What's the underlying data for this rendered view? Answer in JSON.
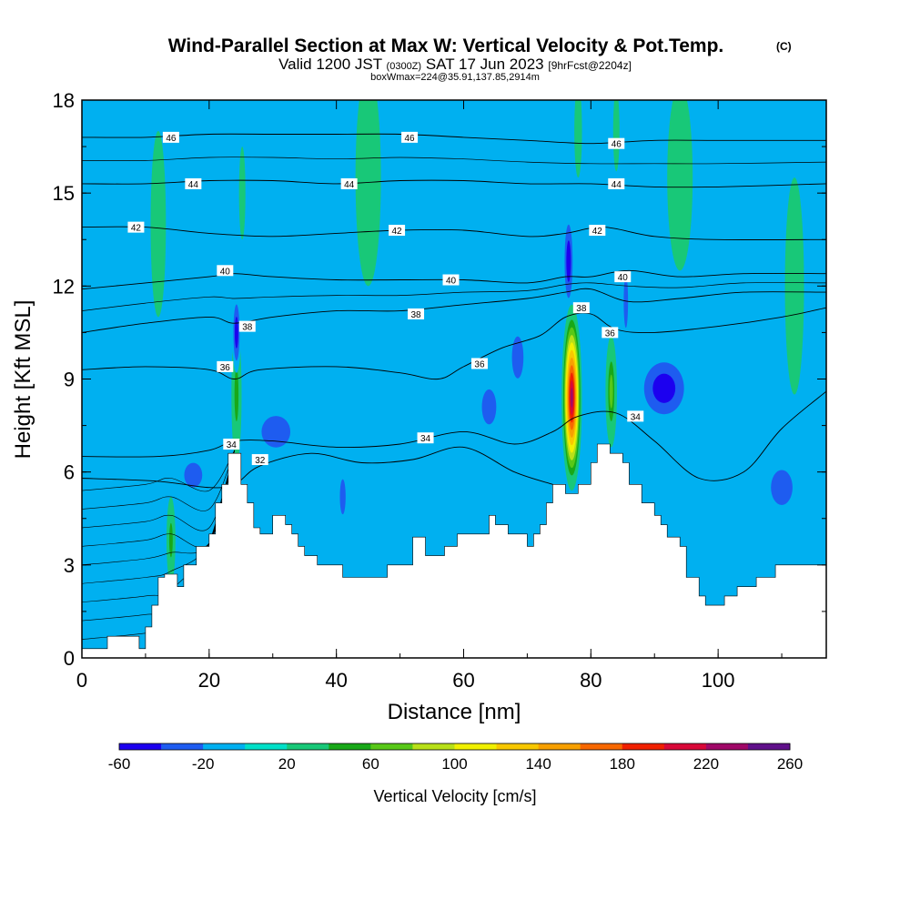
{
  "title": {
    "main": "Wind-Parallel Section at Max W: Vertical Velocity & Pot.Temp.",
    "main_units": "(C)",
    "line2_a": "Valid 1200 JST",
    "line2_b": "(0300Z)",
    "line2_c": "SAT 17 Jun 2023",
    "line2_d": "[9hrFcst@2204z]",
    "line3": "boxWmax=224@35.91,137.85,2914m"
  },
  "chart_data": {
    "type": "heatmap",
    "xlabel": "Distance [nm]",
    "ylabel": "Height [Kft MSL]",
    "xlim": [
      0,
      117
    ],
    "ylim": [
      0,
      18
    ],
    "x_ticks": [
      0,
      20,
      40,
      60,
      80,
      100
    ],
    "y_ticks": [
      0,
      3,
      6,
      9,
      12,
      15,
      18
    ],
    "colorbar": {
      "label": "Vertical Velocity [cm/s]",
      "tick_labels": [
        -60,
        -20,
        20,
        60,
        100,
        140,
        180,
        220,
        260
      ],
      "levels": [
        -60,
        -40,
        -20,
        0,
        20,
        40,
        60,
        80,
        100,
        120,
        140,
        160,
        180,
        200,
        220,
        240,
        260
      ],
      "colors": [
        "#1c00ef",
        "#1e5cf0",
        "#00b0f0",
        "#00e0c8",
        "#18c878",
        "#18a818",
        "#58c818",
        "#b8e018",
        "#f0f000",
        "#f8c800",
        "#f8a000",
        "#f86800",
        "#f02000",
        "#d80838",
        "#a00868",
        "#60108a"
      ]
    },
    "terrain_profile": [
      [
        0,
        0.3
      ],
      [
        4,
        0.3
      ],
      [
        4,
        0.7
      ],
      [
        9,
        0.7
      ],
      [
        9,
        0.3
      ],
      [
        10,
        0.3
      ],
      [
        10,
        1.0
      ],
      [
        11,
        1.0
      ],
      [
        11,
        1.7
      ],
      [
        12,
        1.7
      ],
      [
        12,
        2.6
      ],
      [
        13,
        2.6
      ],
      [
        13,
        2.7
      ],
      [
        15,
        2.7
      ],
      [
        15,
        2.3
      ],
      [
        16,
        2.3
      ],
      [
        16,
        3.0
      ],
      [
        18,
        3.0
      ],
      [
        18,
        3.6
      ],
      [
        20,
        3.6
      ],
      [
        20,
        4.0
      ],
      [
        21,
        4.0
      ],
      [
        21,
        5.0
      ],
      [
        22,
        5.0
      ],
      [
        22,
        5.6
      ],
      [
        23,
        5.6
      ],
      [
        23,
        6.6
      ],
      [
        25,
        6.6
      ],
      [
        25,
        5.6
      ],
      [
        26,
        5.6
      ],
      [
        26,
        5.0
      ],
      [
        27,
        5.0
      ],
      [
        27,
        4.2
      ],
      [
        28,
        4.2
      ],
      [
        28,
        4.0
      ],
      [
        30,
        4.0
      ],
      [
        30,
        4.6
      ],
      [
        32,
        4.6
      ],
      [
        32,
        4.3
      ],
      [
        33,
        4.3
      ],
      [
        33,
        4.0
      ],
      [
        34,
        4.0
      ],
      [
        34,
        3.6
      ],
      [
        35,
        3.6
      ],
      [
        35,
        3.3
      ],
      [
        37,
        3.3
      ],
      [
        37,
        3.0
      ],
      [
        41,
        3.0
      ],
      [
        41,
        2.6
      ],
      [
        48,
        2.6
      ],
      [
        48,
        3.0
      ],
      [
        52,
        3.0
      ],
      [
        52,
        3.9
      ],
      [
        54,
        3.9
      ],
      [
        54,
        3.3
      ],
      [
        57,
        3.3
      ],
      [
        57,
        3.6
      ],
      [
        59,
        3.6
      ],
      [
        59,
        4.0
      ],
      [
        64,
        4.0
      ],
      [
        64,
        4.6
      ],
      [
        65,
        4.6
      ],
      [
        65,
        4.3
      ],
      [
        67,
        4.3
      ],
      [
        67,
        4.0
      ],
      [
        70,
        4.0
      ],
      [
        70,
        3.6
      ],
      [
        71,
        3.6
      ],
      [
        71,
        4.0
      ],
      [
        72,
        4.0
      ],
      [
        72,
        4.3
      ],
      [
        73,
        4.3
      ],
      [
        73,
        5.0
      ],
      [
        74,
        5.0
      ],
      [
        74,
        5.6
      ],
      [
        76,
        5.6
      ],
      [
        76,
        5.3
      ],
      [
        78,
        5.3
      ],
      [
        78,
        5.6
      ],
      [
        80,
        5.6
      ],
      [
        80,
        6.3
      ],
      [
        81,
        6.3
      ],
      [
        81,
        6.9
      ],
      [
        83,
        6.9
      ],
      [
        83,
        6.6
      ],
      [
        85,
        6.6
      ],
      [
        85,
        6.3
      ],
      [
        86,
        6.3
      ],
      [
        86,
        5.6
      ],
      [
        88,
        5.6
      ],
      [
        88,
        5.0
      ],
      [
        90,
        5.0
      ],
      [
        90,
        4.6
      ],
      [
        91,
        4.6
      ],
      [
        91,
        4.3
      ],
      [
        92,
        4.3
      ],
      [
        92,
        3.9
      ],
      [
        94,
        3.9
      ],
      [
        94,
        3.6
      ],
      [
        95,
        3.6
      ],
      [
        95,
        2.6
      ],
      [
        97,
        2.6
      ],
      [
        97,
        2.0
      ],
      [
        98,
        2.0
      ],
      [
        98,
        1.7
      ],
      [
        101,
        1.7
      ],
      [
        101,
        2.0
      ],
      [
        103,
        2.0
      ],
      [
        103,
        2.3
      ],
      [
        106,
        2.3
      ],
      [
        106,
        2.6
      ],
      [
        109,
        2.6
      ],
      [
        109,
        3.0
      ],
      [
        117,
        3.0
      ]
    ],
    "w_features": [
      {
        "x": 77.0,
        "y": 8.4,
        "rx": 1.6,
        "ry": 3.0,
        "w": 230
      },
      {
        "x": 83.2,
        "y": 8.6,
        "rx": 0.9,
        "ry": 1.8,
        "w": 75
      },
      {
        "x": 24.3,
        "y": 8.5,
        "rx": 0.8,
        "ry": 2.2,
        "w": 45
      },
      {
        "x": 14.0,
        "y": 3.8,
        "rx": 0.7,
        "ry": 1.4,
        "w": 60
      },
      {
        "x": 24.3,
        "y": 10.5,
        "rx": 0.7,
        "ry": 1.3,
        "w": -45
      },
      {
        "x": 76.5,
        "y": 12.8,
        "rx": 0.9,
        "ry": 1.7,
        "w": -42
      },
      {
        "x": 91.5,
        "y": 8.7,
        "rx": 4.5,
        "ry": 1.2,
        "w": -48
      },
      {
        "x": 68.5,
        "y": 9.7,
        "rx": 1.6,
        "ry": 1.2,
        "w": -38
      },
      {
        "x": 64.0,
        "y": 8.1,
        "rx": 2.0,
        "ry": 1.0,
        "w": -28
      },
      {
        "x": 30.5,
        "y": 7.3,
        "rx": 4.0,
        "ry": 0.9,
        "w": -32
      },
      {
        "x": 17.5,
        "y": 5.9,
        "rx": 2.5,
        "ry": 0.7,
        "w": -28
      },
      {
        "x": 41.0,
        "y": 5.2,
        "rx": 0.8,
        "ry": 1.0,
        "w": -25
      },
      {
        "x": 110.0,
        "y": 5.5,
        "rx": 3.0,
        "ry": 1.0,
        "w": -30
      },
      {
        "x": 85.5,
        "y": 11.5,
        "rx": 0.6,
        "ry": 1.5,
        "w": -30
      },
      {
        "x": 78.0,
        "y": 17.0,
        "rx": 0.6,
        "ry": 1.5,
        "w": 40
      },
      {
        "x": 84.0,
        "y": 17.0,
        "rx": 0.5,
        "ry": 1.3,
        "w": 28
      },
      {
        "x": 25.2,
        "y": 15.0,
        "rx": 0.5,
        "ry": 1.5,
        "w": 18
      },
      {
        "x": 12.0,
        "y": 14.0,
        "rx": 1.2,
        "ry": 3.0,
        "w": 14
      },
      {
        "x": 45.0,
        "y": 15.5,
        "rx": 2.0,
        "ry": 3.5,
        "w": 12
      },
      {
        "x": 94.0,
        "y": 15.5,
        "rx": 2.0,
        "ry": 3.0,
        "w": 13
      },
      {
        "x": 112.0,
        "y": 12.0,
        "rx": 1.5,
        "ry": 3.5,
        "w": 12
      }
    ],
    "theta_contours": [
      {
        "value": 32,
        "label": true,
        "label_x": 28,
        "pts": [
          [
            0,
            5.8
          ],
          [
            12,
            5.7
          ],
          [
            20,
            5.5
          ],
          [
            24,
            5.6
          ],
          [
            28,
            6.2
          ],
          [
            36,
            6.6
          ],
          [
            44,
            6.3
          ],
          [
            52,
            6.4
          ],
          [
            60,
            6.8
          ],
          [
            68,
            6.0
          ],
          [
            74,
            5.6
          ]
        ]
      },
      {
        "value": 34,
        "label": true,
        "label_x": 54,
        "pts": [
          [
            0,
            6.5
          ],
          [
            12,
            6.5
          ],
          [
            20,
            6.7
          ],
          [
            24,
            7.0
          ],
          [
            30,
            7.0
          ],
          [
            40,
            6.8
          ],
          [
            50,
            6.9
          ],
          [
            60,
            7.3
          ],
          [
            68,
            6.9
          ],
          [
            74,
            7.3
          ],
          [
            78,
            7.8
          ],
          [
            84,
            7.9
          ],
          [
            90,
            7.0
          ],
          [
            97,
            5.8
          ],
          [
            104,
            6.0
          ],
          [
            110,
            7.4
          ],
          [
            117,
            8.6
          ]
        ]
      },
      {
        "value": 36,
        "label": true,
        "label_x": 62,
        "pts": [
          [
            0,
            9.3
          ],
          [
            10,
            9.4
          ],
          [
            20,
            9.3
          ],
          [
            24,
            9.0
          ],
          [
            28,
            9.3
          ],
          [
            40,
            9.4
          ],
          [
            50,
            9.2
          ],
          [
            56,
            9.0
          ],
          [
            60,
            9.4
          ],
          [
            66,
            10.0
          ],
          [
            72,
            10.4
          ],
          [
            76,
            11.0
          ],
          [
            80,
            11.1
          ],
          [
            84,
            10.6
          ],
          [
            90,
            10.5
          ],
          [
            100,
            10.7
          ],
          [
            110,
            11.0
          ],
          [
            117,
            11.3
          ]
        ]
      },
      {
        "value": 38,
        "label": true,
        "label_x": 52,
        "pts": [
          [
            0,
            10.5
          ],
          [
            10,
            10.8
          ],
          [
            20,
            11.0
          ],
          [
            24,
            10.8
          ],
          [
            30,
            11.0
          ],
          [
            40,
            11.2
          ],
          [
            50,
            11.2
          ],
          [
            60,
            11.4
          ],
          [
            70,
            11.6
          ],
          [
            76,
            11.8
          ],
          [
            80,
            11.9
          ],
          [
            86,
            11.5
          ],
          [
            94,
            11.6
          ],
          [
            104,
            11.8
          ],
          [
            117,
            11.8
          ]
        ]
      },
      {
        "value": 40,
        "label": true,
        "label_x": 58,
        "pts": [
          [
            0,
            11.9
          ],
          [
            10,
            12.1
          ],
          [
            20,
            12.3
          ],
          [
            24,
            12.4
          ],
          [
            30,
            12.3
          ],
          [
            40,
            12.2
          ],
          [
            50,
            12.2
          ],
          [
            60,
            12.2
          ],
          [
            70,
            12.1
          ],
          [
            76,
            12.3
          ],
          [
            80,
            12.3
          ],
          [
            86,
            12.5
          ],
          [
            94,
            12.3
          ],
          [
            104,
            12.4
          ],
          [
            117,
            12.4
          ]
        ]
      },
      {
        "value": 42,
        "label": true,
        "label_x": 50,
        "pts": [
          [
            0,
            13.9
          ],
          [
            10,
            13.9
          ],
          [
            20,
            13.7
          ],
          [
            30,
            13.6
          ],
          [
            40,
            13.7
          ],
          [
            50,
            13.8
          ],
          [
            60,
            13.8
          ],
          [
            70,
            13.6
          ],
          [
            76,
            13.7
          ],
          [
            82,
            13.9
          ],
          [
            90,
            13.6
          ],
          [
            100,
            13.5
          ],
          [
            117,
            13.5
          ]
        ]
      },
      {
        "value": 44,
        "label": true,
        "label_x": 42,
        "pts": [
          [
            0,
            15.3
          ],
          [
            10,
            15.3
          ],
          [
            20,
            15.4
          ],
          [
            30,
            15.4
          ],
          [
            40,
            15.3
          ],
          [
            50,
            15.4
          ],
          [
            60,
            15.4
          ],
          [
            70,
            15.3
          ],
          [
            80,
            15.3
          ],
          [
            90,
            15.2
          ],
          [
            100,
            15.2
          ],
          [
            117,
            15.3
          ]
        ]
      },
      {
        "value": 46,
        "label": true,
        "label_x": 52,
        "pts": [
          [
            0,
            16.8
          ],
          [
            10,
            16.8
          ],
          [
            20,
            16.9
          ],
          [
            30,
            16.9
          ],
          [
            40,
            16.9
          ],
          [
            50,
            16.9
          ],
          [
            60,
            16.8
          ],
          [
            70,
            16.7
          ],
          [
            80,
            16.6
          ],
          [
            90,
            16.7
          ],
          [
            100,
            16.7
          ],
          [
            117,
            16.7
          ]
        ]
      }
    ],
    "contour_labels": [
      {
        "text": "46",
        "x": 14,
        "y": 16.8
      },
      {
        "text": "46",
        "x": 51.5,
        "y": 16.8
      },
      {
        "text": "46",
        "x": 84,
        "y": 16.6
      },
      {
        "text": "44",
        "x": 17.5,
        "y": 15.3
      },
      {
        "text": "44",
        "x": 42,
        "y": 15.3
      },
      {
        "text": "44",
        "x": 84,
        "y": 15.3
      },
      {
        "text": "42",
        "x": 8.5,
        "y": 13.9
      },
      {
        "text": "42",
        "x": 49.5,
        "y": 13.8
      },
      {
        "text": "42",
        "x": 81,
        "y": 13.8
      },
      {
        "text": "40",
        "x": 22.5,
        "y": 12.5
      },
      {
        "text": "40",
        "x": 58,
        "y": 12.2
      },
      {
        "text": "40",
        "x": 85,
        "y": 12.3
      },
      {
        "text": "38",
        "x": 26,
        "y": 10.7
      },
      {
        "text": "38",
        "x": 52.5,
        "y": 11.1
      },
      {
        "text": "38",
        "x": 78.5,
        "y": 11.3
      },
      {
        "text": "36",
        "x": 22.5,
        "y": 9.4
      },
      {
        "text": "36",
        "x": 62.5,
        "y": 9.5
      },
      {
        "text": "36",
        "x": 83,
        "y": 10.5
      },
      {
        "text": "34",
        "x": 23.5,
        "y": 6.9
      },
      {
        "text": "34",
        "x": 54,
        "y": 7.1
      },
      {
        "text": "34",
        "x": 87,
        "y": 7.8
      },
      {
        "text": "32",
        "x": 28,
        "y": 6.4
      }
    ]
  }
}
